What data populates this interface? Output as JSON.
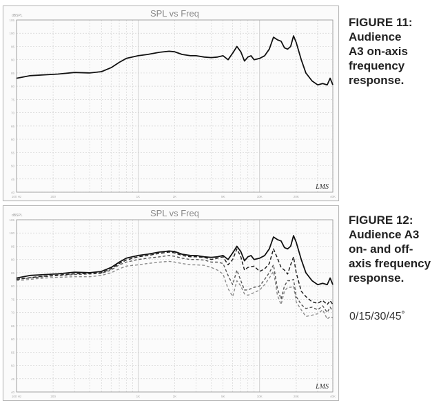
{
  "figures": [
    {
      "number_label": "FIGURE 11:",
      "caption_lines": [
        "Audience",
        "A3 on-axis",
        "frequency",
        "response."
      ]
    },
    {
      "number_label": "FIGURE 12:",
      "caption_lines": [
        "Audience A3",
        "on- and off-",
        "axis frequency",
        "response."
      ],
      "angles_note": "0/15/30/45˚"
    }
  ],
  "colors": {
    "grid": "#d4d4d4",
    "grid_major": "#bdbdbd",
    "axis": "#9a9a9a",
    "on_axis": "#111111",
    "deg15": "#222222",
    "deg30": "#555555",
    "deg45": "#8a8a8a"
  },
  "chart_data": [
    {
      "type": "line",
      "title": "SPL vs Freq",
      "ylabel": "dBSPL",
      "watermark": "LMS",
      "x_scale": "log",
      "xlim": [
        100,
        40000
      ],
      "ylim": [
        40,
        105
      ],
      "y_ticks": [
        105,
        100,
        95,
        90,
        85,
        80,
        75,
        70,
        65,
        60,
        55,
        50,
        45,
        40
      ],
      "x_tick_labels": [
        {
          "x": 100,
          "label": "100 Hz"
        },
        {
          "x": 200,
          "label": "200"
        },
        {
          "x": 1000,
          "label": "1K"
        },
        {
          "x": 2000,
          "label": "2K"
        },
        {
          "x": 5000,
          "label": "5K"
        },
        {
          "x": 10000,
          "label": "10K"
        },
        {
          "x": 20000,
          "label": "20K"
        },
        {
          "x": 40000,
          "label": "40K"
        }
      ],
      "series": [
        {
          "name": "0°",
          "style": "solid",
          "x": [
            100,
            130,
            170,
            220,
            300,
            400,
            500,
            600,
            700,
            800,
            1000,
            1200,
            1500,
            1800,
            2000,
            2300,
            2700,
            3000,
            3500,
            4000,
            4500,
            5000,
            5500,
            6000,
            6500,
            7000,
            7500,
            8000,
            8500,
            9000,
            10000,
            11000,
            12000,
            13000,
            14000,
            15000,
            16000,
            17000,
            18000,
            19000,
            20000,
            22000,
            24000,
            27000,
            30000,
            33000,
            36000,
            38000,
            40000
          ],
          "y": [
            83.0,
            84.0,
            84.3,
            84.6,
            85.2,
            85.0,
            85.5,
            87.0,
            89.0,
            90.5,
            91.5,
            92.0,
            92.8,
            93.2,
            93.0,
            92.0,
            91.5,
            91.5,
            91.0,
            90.8,
            91.0,
            91.5,
            90.0,
            92.5,
            95.0,
            93.0,
            89.5,
            91.0,
            91.5,
            90.0,
            90.5,
            91.5,
            94.0,
            98.5,
            97.5,
            97.0,
            94.5,
            94.0,
            95.0,
            99.0,
            96.5,
            90.0,
            85.0,
            82.0,
            80.5,
            81.0,
            80.5,
            83.0,
            80.5
          ]
        }
      ]
    },
    {
      "type": "line",
      "title": "SPL vs Freq",
      "ylabel": "dBSPL",
      "watermark": "LMS",
      "x_scale": "log",
      "xlim": [
        100,
        40000
      ],
      "ylim": [
        40,
        105
      ],
      "y_ticks": [
        105,
        100,
        95,
        90,
        85,
        80,
        75,
        70,
        65,
        60,
        55,
        50,
        45,
        40
      ],
      "x_tick_labels": [
        {
          "x": 100,
          "label": "100 Hz"
        },
        {
          "x": 200,
          "label": "200"
        },
        {
          "x": 1000,
          "label": "1K"
        },
        {
          "x": 2000,
          "label": "2K"
        },
        {
          "x": 5000,
          "label": "5K"
        },
        {
          "x": 10000,
          "label": "10K"
        },
        {
          "x": 20000,
          "label": "20K"
        },
        {
          "x": 40000,
          "label": "40K"
        }
      ],
      "series": [
        {
          "name": "0°",
          "style": "solid",
          "x": [
            100,
            130,
            170,
            220,
            300,
            400,
            500,
            600,
            700,
            800,
            1000,
            1200,
            1500,
            1800,
            2000,
            2300,
            2700,
            3000,
            3500,
            4000,
            4500,
            5000,
            5500,
            6000,
            6500,
            7000,
            7500,
            8000,
            8500,
            9000,
            10000,
            11000,
            12000,
            13000,
            14000,
            15000,
            16000,
            17000,
            18000,
            19000,
            20000,
            22000,
            24000,
            27000,
            30000,
            33000,
            36000,
            38000,
            40000
          ],
          "y": [
            83.0,
            84.0,
            84.3,
            84.6,
            85.2,
            85.0,
            85.5,
            87.0,
            89.0,
            90.5,
            91.5,
            92.0,
            92.8,
            93.2,
            93.0,
            92.0,
            91.5,
            91.5,
            91.0,
            90.8,
            91.0,
            91.5,
            90.0,
            92.5,
            95.0,
            93.0,
            89.5,
            91.0,
            91.5,
            90.0,
            90.5,
            91.5,
            94.0,
            98.5,
            97.5,
            97.0,
            94.5,
            94.0,
            95.0,
            99.0,
            96.5,
            90.0,
            85.0,
            82.0,
            80.5,
            81.0,
            80.5,
            83.0,
            80.5
          ]
        },
        {
          "name": "15°",
          "style": "dashed",
          "x": [
            100,
            150,
            200,
            300,
            400,
            500,
            600,
            700,
            800,
            1000,
            1200,
            1500,
            1800,
            2000,
            2300,
            2700,
            3000,
            3500,
            4000,
            4500,
            5000,
            5500,
            6000,
            6500,
            7000,
            7500,
            8000,
            9000,
            10000,
            11000,
            12000,
            13000,
            14000,
            15000,
            16000,
            17000,
            18000,
            19000,
            20000,
            22000,
            24000,
            27000,
            30000,
            33000,
            36000,
            38000,
            40000
          ],
          "y": [
            82.5,
            83.5,
            84.0,
            84.6,
            84.8,
            85.0,
            86.5,
            88.5,
            89.8,
            91.0,
            91.5,
            92.3,
            92.8,
            92.5,
            91.5,
            91.0,
            91.0,
            90.8,
            90.0,
            90.5,
            91.0,
            88.0,
            90.0,
            94.0,
            91.0,
            86.0,
            87.0,
            87.5,
            85.5,
            86.5,
            88.5,
            94.0,
            90.5,
            87.0,
            86.0,
            84.5,
            88.0,
            91.0,
            85.0,
            78.0,
            76.0,
            74.0,
            73.5,
            74.5,
            73.0,
            74.5,
            73.0
          ]
        },
        {
          "name": "30°",
          "style": "dashed",
          "x": [
            100,
            150,
            200,
            300,
            400,
            500,
            600,
            700,
            800,
            1000,
            1200,
            1500,
            1800,
            2000,
            2300,
            2700,
            3000,
            3500,
            4000,
            4500,
            5000,
            5500,
            6000,
            6500,
            7000,
            7500,
            8000,
            9000,
            10000,
            11000,
            12000,
            13000,
            14000,
            15000,
            16000,
            17000,
            18000,
            19000,
            20000,
            22000,
            24000,
            27000,
            30000,
            33000,
            36000,
            38000,
            40000
          ],
          "y": [
            82.5,
            83.3,
            83.8,
            84.3,
            84.5,
            84.8,
            86.0,
            88.0,
            89.0,
            90.0,
            90.5,
            91.0,
            91.5,
            91.2,
            90.5,
            90.0,
            90.0,
            89.8,
            89.0,
            89.0,
            88.5,
            84.0,
            80.5,
            86.0,
            82.0,
            78.5,
            78.5,
            79.5,
            80.0,
            82.5,
            85.0,
            88.0,
            79.0,
            75.0,
            80.0,
            82.0,
            82.0,
            82.5,
            76.0,
            73.0,
            71.5,
            72.0,
            71.0,
            72.5,
            70.0,
            72.0,
            70.5
          ]
        },
        {
          "name": "45°",
          "style": "dashed",
          "x": [
            100,
            150,
            200,
            300,
            400,
            500,
            600,
            700,
            800,
            1000,
            1200,
            1500,
            1800,
            2000,
            2300,
            2700,
            3000,
            3500,
            4000,
            4500,
            5000,
            5500,
            6000,
            6500,
            7000,
            7500,
            8000,
            9000,
            10000,
            11000,
            12000,
            13000,
            14000,
            15000,
            16000,
            17000,
            18000,
            19000,
            20000,
            22000,
            24000,
            27000,
            30000,
            33000,
            36000,
            38000,
            40000
          ],
          "y": [
            82.0,
            82.8,
            83.2,
            83.5,
            83.5,
            84.0,
            85.0,
            86.5,
            87.5,
            88.0,
            88.5,
            89.0,
            89.3,
            89.0,
            88.5,
            88.0,
            88.0,
            87.8,
            87.0,
            86.0,
            84.5,
            79.0,
            76.0,
            82.0,
            80.0,
            77.0,
            76.5,
            77.5,
            78.5,
            80.5,
            83.0,
            85.5,
            76.5,
            73.0,
            78.0,
            79.5,
            79.5,
            80.0,
            74.0,
            71.0,
            68.5,
            69.0,
            69.5,
            71.0,
            67.5,
            68.5,
            68.0
          ]
        }
      ]
    }
  ]
}
